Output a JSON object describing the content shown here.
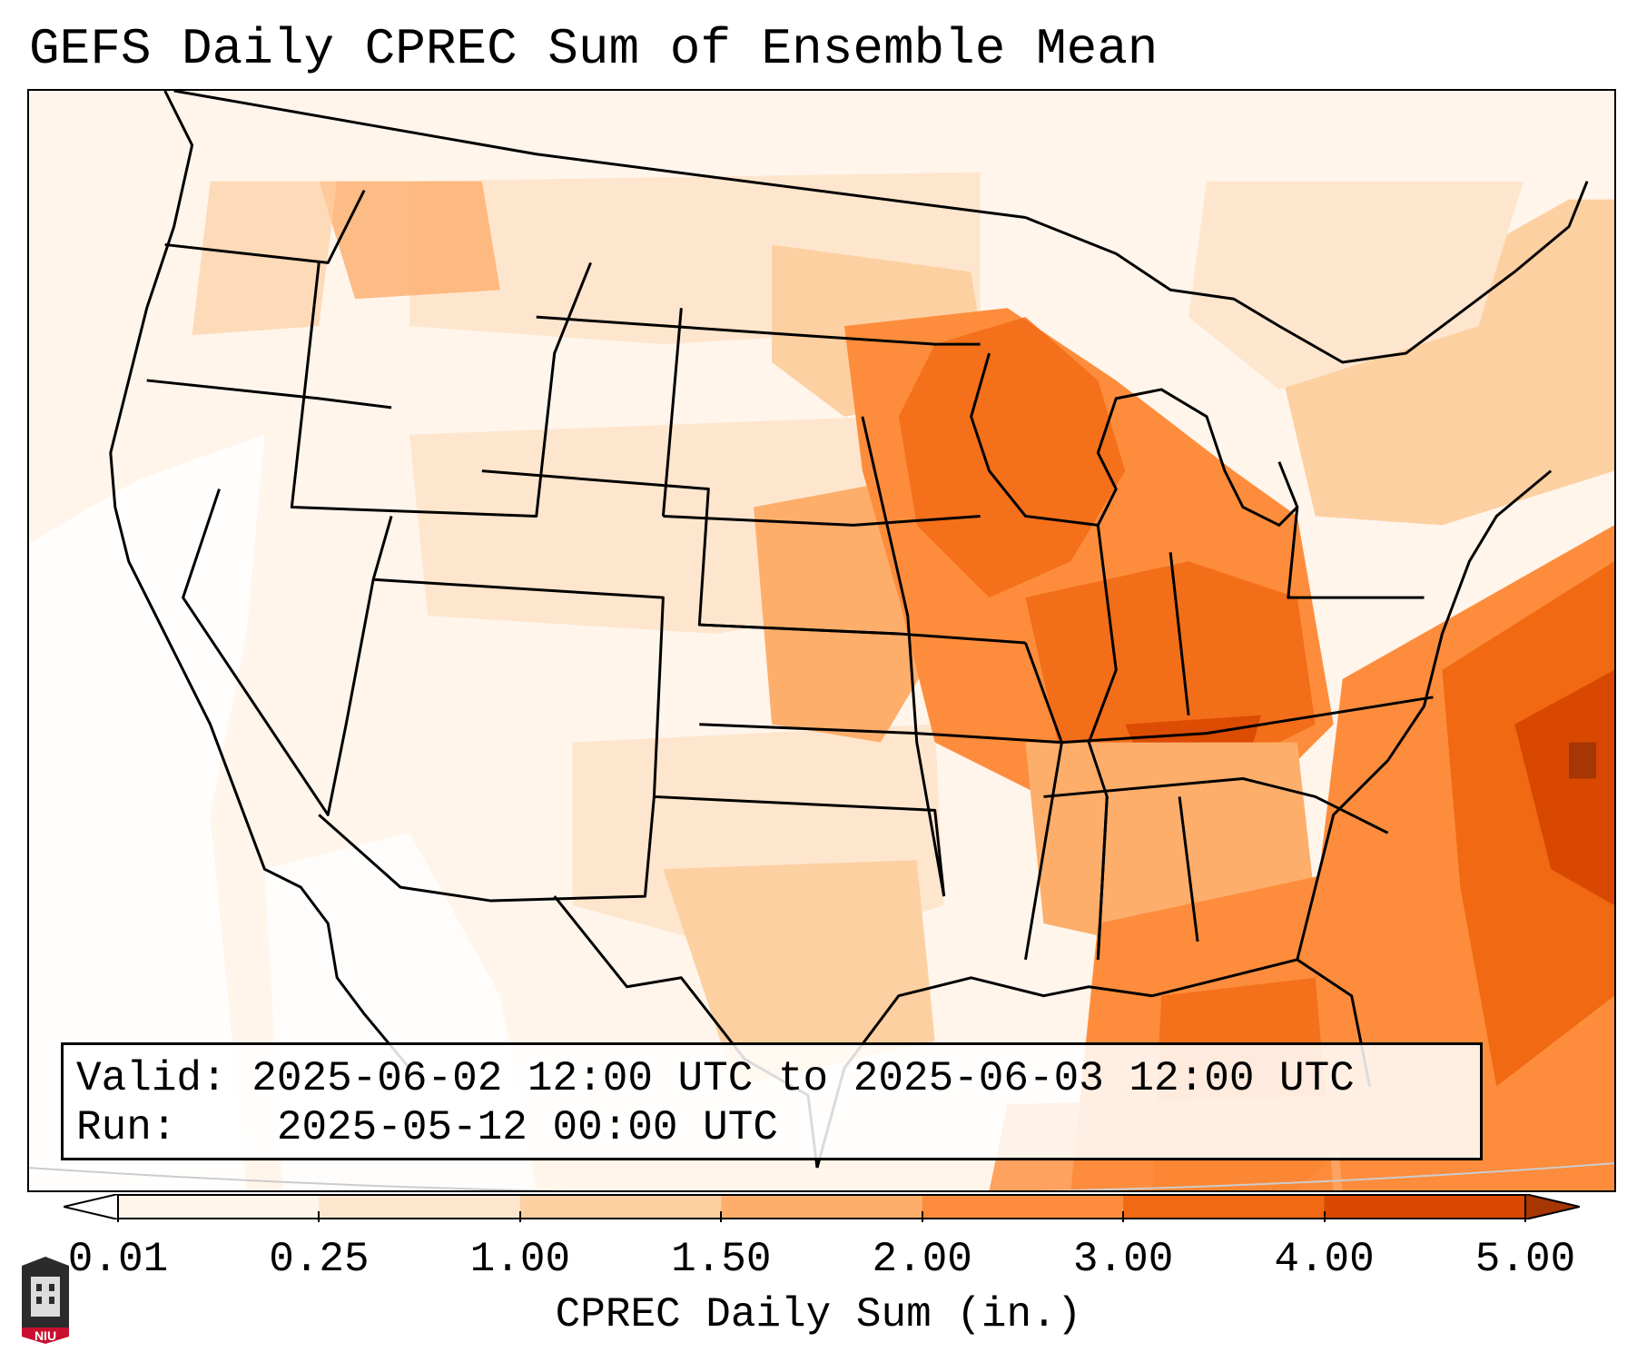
{
  "title": "GEFS Daily CPREC Sum of Ensemble Mean",
  "valid_box": {
    "valid_label": "Valid:",
    "valid_value": "2025-06-02 12:00 UTC to 2025-06-03 12:00 UTC",
    "run_label": "Run:",
    "run_value": "2025-05-12 00:00 UTC"
  },
  "colorbar": {
    "label": "CPREC Daily Sum (in.)",
    "ticks": [
      "0.01",
      "0.25",
      "1.00",
      "1.50",
      "2.00",
      "3.00",
      "4.00",
      "5.00"
    ],
    "colors": [
      "#fff5eb",
      "#fee6ce",
      "#fdd0a2",
      "#fdae6b",
      "#fd8d3c",
      "#f16913",
      "#d94801",
      "#a63603"
    ],
    "extend": "both"
  },
  "logo": {
    "icon": "niu-logo",
    "text": "NIU",
    "color": "#c8102e"
  },
  "map": {
    "region": "Contiguous United States",
    "ocean_color": "#ffffff",
    "border_color": "#000000"
  }
}
